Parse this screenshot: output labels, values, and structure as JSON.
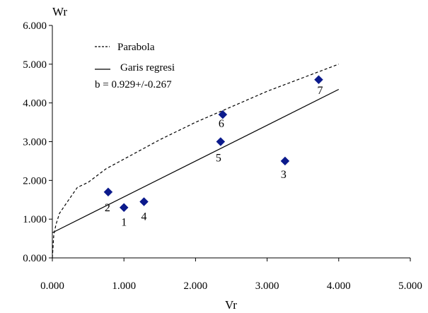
{
  "chart_data": {
    "type": "scatter",
    "title": "",
    "xlabel": "Vr",
    "ylabel": "Wr",
    "xlim": [
      0,
      5
    ],
    "ylim": [
      0,
      6
    ],
    "x_ticks": [
      "0.000",
      "1.000",
      "2.000",
      "3.000",
      "4.000",
      "5.000"
    ],
    "y_ticks": [
      "0.000",
      "1.000",
      "2.000",
      "3.000",
      "4.000",
      "5.000",
      "6.000"
    ],
    "grid": false,
    "legend_position": "top-left",
    "series": [
      {
        "kind": "points",
        "marker": "diamond",
        "color": "#0b1a8c",
        "points": [
          {
            "label": "1",
            "x": 1.0,
            "y": 1.3
          },
          {
            "label": "2",
            "x": 0.78,
            "y": 1.7
          },
          {
            "label": "3",
            "x": 3.25,
            "y": 2.5
          },
          {
            "label": "4",
            "x": 1.28,
            "y": 1.45
          },
          {
            "label": "5",
            "x": 2.35,
            "y": 3.0
          },
          {
            "label": "6",
            "x": 2.38,
            "y": 3.7
          },
          {
            "label": "7",
            "x": 3.72,
            "y": 4.6
          }
        ]
      },
      {
        "name": "Parabola",
        "kind": "curve",
        "style": "dashed",
        "color": "#000000",
        "x": [
          0.0,
          0.02,
          0.05,
          0.1,
          0.2,
          0.35,
          0.5,
          0.75,
          1.0,
          1.5,
          2.0,
          2.5,
          3.0,
          3.5,
          4.0
        ],
        "y": [
          0.0,
          0.59,
          0.86,
          1.15,
          1.42,
          1.82,
          1.95,
          2.3,
          2.55,
          3.05,
          3.5,
          3.9,
          4.3,
          4.65,
          5.0
        ]
      },
      {
        "name": "Garis regresi",
        "kind": "line",
        "style": "solid",
        "color": "#000000",
        "x": [
          0.0,
          4.0
        ],
        "y": [
          0.65,
          4.35
        ]
      }
    ],
    "annotation": "b = 0.929+/-0.267"
  },
  "colors": {
    "marker": "#0b1a8c",
    "line": "#000000",
    "background": "#ffffff"
  }
}
